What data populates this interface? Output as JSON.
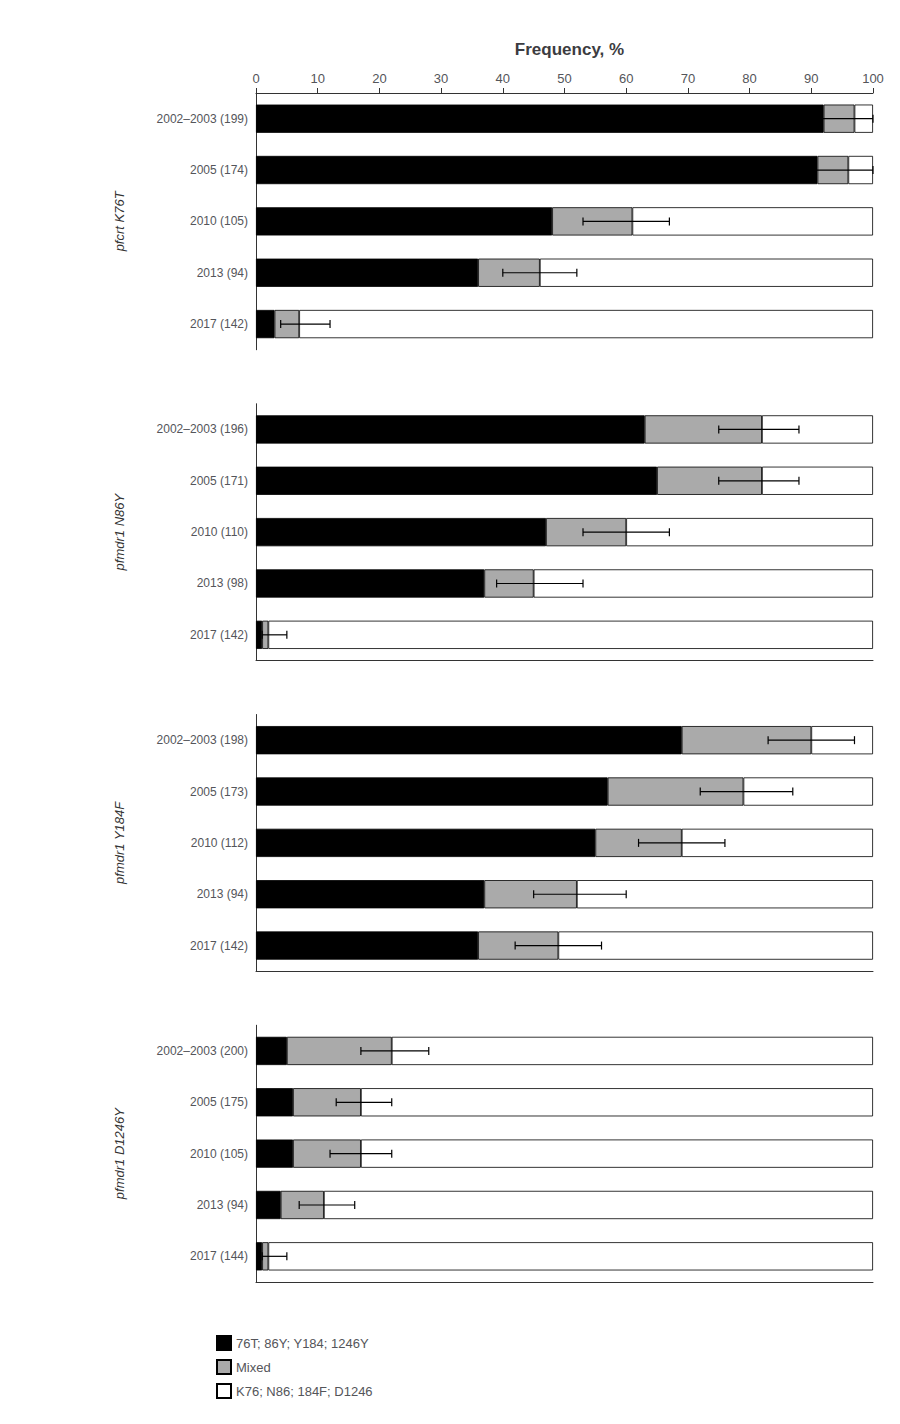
{
  "chart_data": [
    {
      "type": "bar",
      "title": "Frequency, %",
      "orientation": "horizontal",
      "stacked": true,
      "grid": false,
      "legend": "bottom",
      "ylabel": "pfcrt K76T",
      "categories": [
        "2002–2003 (199)",
        "2005 (174)",
        "2010 (105)",
        "2013 (94)",
        "2017 (142)"
      ],
      "series": [
        {
          "name": "76T; 86Y; Y184; 1246Y",
          "color": "#000000",
          "values": [
            92,
            91,
            48,
            36,
            3
          ]
        },
        {
          "name": "Mixed",
          "color": "#aaaaaa",
          "values": [
            5,
            5,
            13,
            10,
            4
          ]
        },
        {
          "name": "K76; N86; 184F; D1246",
          "color": "#ffffff",
          "values": [
            3,
            4,
            39,
            54,
            93
          ]
        }
      ],
      "ci_total": [
        97,
        96,
        61,
        46,
        7
      ],
      "ci_lo_err": [
        6,
        6,
        8,
        6,
        3
      ],
      "ci_hi_err": [
        3,
        4,
        6,
        6,
        5
      ],
      "xlim": [
        0,
        100
      ],
      "xticks": [
        0,
        10,
        20,
        30,
        40,
        50,
        60,
        70,
        80,
        90,
        100
      ]
    },
    {
      "type": "bar",
      "orientation": "horizontal",
      "stacked": true,
      "grid": false,
      "tick_labels": "y",
      "ylabel": "pfmdr1 N86Y",
      "categories": [
        "2002–2003 (196)",
        "2005 (171)",
        "2010 (110)",
        "2013 (98)",
        "2017 (142)"
      ],
      "series": [
        {
          "name": "76T; 86Y; Y184; 1246Y",
          "color": "#000000",
          "values": [
            63,
            65,
            47,
            37,
            1
          ]
        },
        {
          "name": "Mixed",
          "color": "#aaaaaa",
          "values": [
            19,
            17,
            13,
            8,
            1
          ]
        },
        {
          "name": "K76; N86; 184F; D1246",
          "color": "#ffffff",
          "values": [
            18,
            18,
            40,
            55,
            98
          ]
        }
      ],
      "ci_total": [
        82,
        82,
        60,
        45,
        2
      ],
      "ci_lo_err": [
        7,
        7,
        7,
        6,
        1
      ],
      "ci_hi_err": [
        6,
        6,
        7,
        8,
        3
      ],
      "xlim": [
        0,
        100
      ]
    },
    {
      "type": "bar",
      "orientation": "horizontal",
      "stacked": true,
      "grid": false,
      "tick_labels": "y",
      "ylabel": "pfmdr1 Y184F",
      "categories": [
        "2002–2003 (198)",
        "2005 (173)",
        "2010 (112)",
        "2013 (94)",
        "2017 (142)"
      ],
      "series": [
        {
          "name": "76T; 86Y; Y184; 1246Y",
          "color": "#000000",
          "values": [
            69,
            57,
            55,
            37,
            36
          ]
        },
        {
          "name": "Mixed",
          "color": "#aaaaaa",
          "values": [
            21,
            22,
            14,
            15,
            13
          ]
        },
        {
          "name": "K76; N86; 184F; D1246",
          "color": "#ffffff",
          "values": [
            10,
            21,
            31,
            48,
            51
          ]
        }
      ],
      "ci_total": [
        90,
        79,
        69,
        52,
        49
      ],
      "ci_lo_err": [
        7,
        7,
        7,
        7,
        7
      ],
      "ci_hi_err": [
        7,
        8,
        7,
        8,
        7
      ],
      "xlim": [
        0,
        100
      ]
    },
    {
      "type": "bar",
      "orientation": "horizontal",
      "stacked": true,
      "grid": false,
      "tick_labels": "y",
      "ylabel": "pfmdr1 D1246Y",
      "categories": [
        "2002–2003 (200)",
        "2005 (175)",
        "2010 (105)",
        "2013 (94)",
        "2017 (144)"
      ],
      "series": [
        {
          "name": "76T; 86Y; Y184; 1246Y",
          "color": "#000000",
          "values": [
            5,
            6,
            6,
            4,
            1
          ]
        },
        {
          "name": "Mixed",
          "color": "#aaaaaa",
          "values": [
            17,
            11,
            11,
            7,
            1
          ]
        },
        {
          "name": "K76; N86; 184F; D1246",
          "color": "#ffffff",
          "values": [
            78,
            83,
            83,
            89,
            98
          ]
        }
      ],
      "ci_total": [
        22,
        17,
        17,
        11,
        2
      ],
      "ci_lo_err": [
        5,
        4,
        5,
        4,
        1
      ],
      "ci_hi_err": [
        6,
        5,
        5,
        5,
        3
      ],
      "xlim": [
        0,
        100
      ]
    }
  ]
}
